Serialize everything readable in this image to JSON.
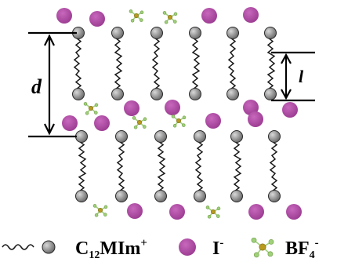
{
  "diagram": {
    "labels": {
      "d": "d",
      "l": "l"
    },
    "legend": {
      "cation_label": "C",
      "cation_subscript": "12",
      "cation_tail": "MIm",
      "cation_charge": "+",
      "iodide_label": "I",
      "iodide_charge": "-",
      "anion_label": "BF",
      "anion_subscript": "4",
      "anion_charge": "-"
    },
    "colors": {
      "head": "#8a8a8a",
      "head_stroke": "#2a2a2a",
      "iodide": "#b04aa6",
      "bf4_center": "#b79a1e",
      "bf4_arm": "#9fd07a",
      "chain": "#1a1a1a"
    }
  }
}
